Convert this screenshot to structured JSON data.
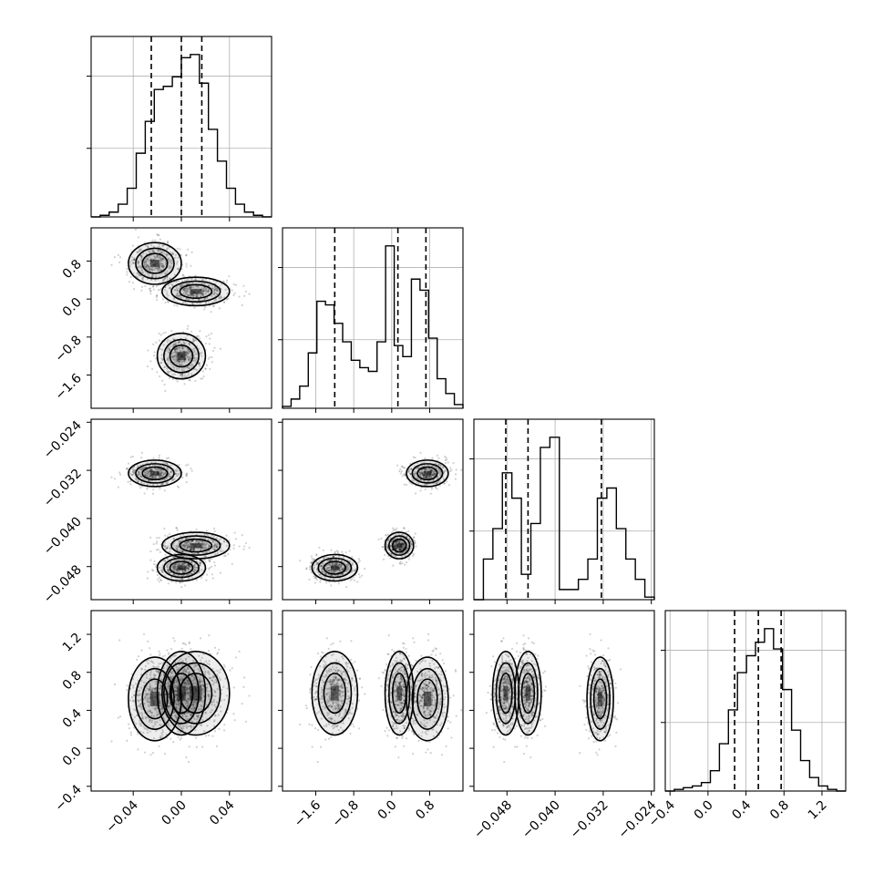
{
  "chart_data": {
    "type": "corner",
    "parameters": [
      {
        "name": "",
        "range": [
          -0.075,
          0.075
        ],
        "ticks": [
          -0.04,
          0.0,
          0.04
        ],
        "tick_labels": [
          "−0.04",
          "0.00",
          "0.04"
        ],
        "quantiles": [
          -0.025,
          0.0,
          0.017
        ]
      },
      {
        "name": "",
        "range": [
          -2.3,
          1.5
        ],
        "ticks": [
          -1.6,
          -0.8,
          0.0,
          0.8
        ],
        "tick_labels": [
          "−1.6",
          "−0.8",
          "0.0",
          "0.8"
        ],
        "quantiles": [
          -1.2,
          0.13,
          0.72
        ]
      },
      {
        "name": "",
        "range": [
          -0.0535,
          -0.0235
        ],
        "ticks": [
          -0.048,
          -0.04,
          -0.032,
          -0.024
        ],
        "tick_labels": [
          "−0.048",
          "−0.040",
          "−0.032",
          "−0.024"
        ],
        "quantiles": [
          -0.0482,
          -0.0445,
          -0.0323
        ]
      },
      {
        "name": "",
        "range": [
          -0.45,
          1.45
        ],
        "ticks": [
          -0.4,
          0.0,
          0.4,
          0.8,
          1.2
        ],
        "tick_labels": [
          "−0.4",
          "0.0",
          "0.4",
          "0.8",
          "1.2"
        ],
        "quantiles": [
          0.28,
          0.53,
          0.77
        ]
      }
    ],
    "histograms": [
      [
        0,
        1,
        3,
        8,
        18,
        40,
        60,
        80,
        82,
        88,
        100,
        102,
        84,
        55,
        35,
        18,
        8,
        3,
        1,
        0
      ],
      [
        1,
        5,
        12,
        30,
        58,
        56,
        46,
        36,
        26,
        22,
        20,
        36,
        88,
        34,
        28,
        70,
        64,
        38,
        16,
        8,
        2
      ],
      [
        0,
        16,
        28,
        50,
        40,
        10,
        30,
        60,
        64,
        4,
        4,
        8,
        16,
        40,
        44,
        28,
        16,
        8,
        1
      ],
      [
        0,
        1,
        2,
        3,
        5,
        12,
        28,
        48,
        70,
        80,
        88,
        96,
        84,
        60,
        36,
        18,
        8,
        3,
        1,
        0
      ]
    ],
    "clusters": [
      {
        "weight": 0.333,
        "mean": [
          -0.022,
          0.75,
          -0.0325,
          0.52
        ],
        "sd": [
          0.011,
          0.22,
          0.0011,
          0.22
        ]
      },
      {
        "weight": 0.333,
        "mean": [
          0.012,
          0.16,
          -0.0445,
          0.58
        ],
        "sd": [
          0.014,
          0.15,
          0.0011,
          0.22
        ]
      },
      {
        "weight": 0.334,
        "mean": [
          0.0,
          -1.2,
          -0.0482,
          0.58
        ],
        "sd": [
          0.01,
          0.24,
          0.0011,
          0.22
        ]
      }
    ],
    "grid": true
  }
}
